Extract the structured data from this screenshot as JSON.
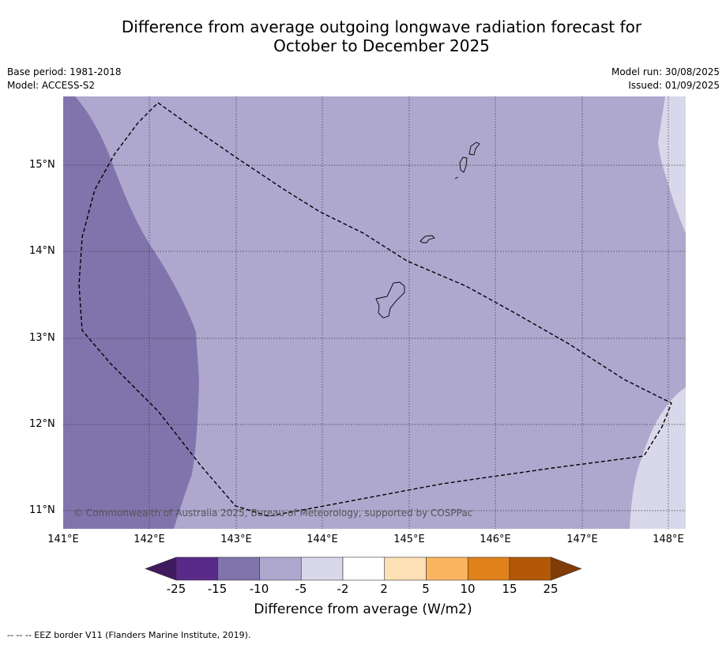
{
  "title_line1": "Difference from average outgoing longwave radiation forecast for",
  "title_line2": "October to December 2025",
  "meta_left": [
    "Base period: 1981-2018",
    "Model: ACCESS-S2"
  ],
  "meta_right": [
    "Model run: 30/08/2025",
    "Issued: 01/09/2025"
  ],
  "copyright": "© Commonwealth of Australia 2025, Bureau of Meteorology, supported by COSPPac",
  "lat_labels": [
    "15°N",
    "14°N",
    "13°N",
    "12°N",
    "11°N"
  ],
  "lon_labels": [
    "141°E",
    "142°E",
    "143°E",
    "144°E",
    "145°E",
    "146°E",
    "147°E",
    "148°E"
  ],
  "colorbar": {
    "ticks": [
      "-25",
      "-15",
      "-10",
      "-5",
      "-2",
      "2",
      "5",
      "10",
      "15",
      "25"
    ],
    "colors": [
      "#3f1a5e",
      "#5a2a8a",
      "#8174ad",
      "#aea8cf",
      "#d9d8ea",
      "#ffffff",
      "#fde0b6",
      "#fbb561",
      "#e0811a",
      "#b35806",
      "#7f3b08"
    ],
    "label": "Difference from average (W/m2)"
  },
  "footnote": "--  --  -- EEZ border V11 (Flanders Marine Institute, 2019).",
  "colors": {
    "band_minus10_minus15": "#8174ad",
    "band_minus5_minus10": "#aea8cf",
    "band_minus2_minus5": "#d9d8ea"
  }
}
